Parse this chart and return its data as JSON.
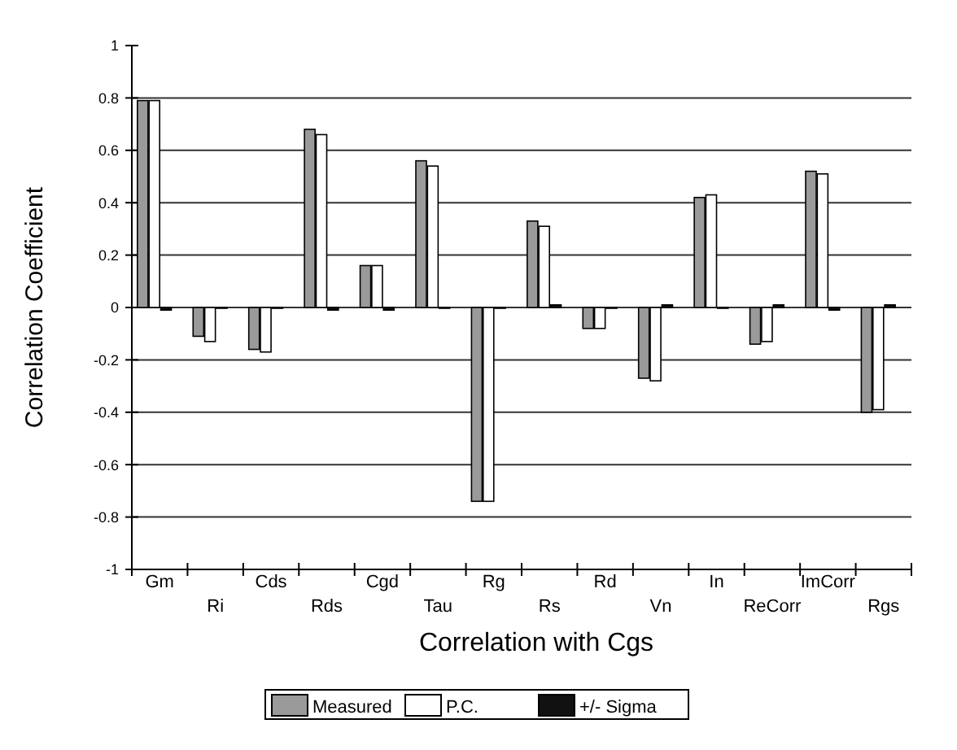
{
  "chart_data": {
    "type": "bar",
    "xlabel": "Correlation with Cgs",
    "ylabel": "Correlation Coefficient",
    "categories": [
      "Gm",
      "Ri",
      "Cds",
      "Rds",
      "Cgd",
      "Tau",
      "Rg",
      "Rs",
      "Rd",
      "Vn",
      "In",
      "ReCorr",
      "ImCorr",
      "Rgs"
    ],
    "series": [
      {
        "name": "Measured",
        "color": "#9a9a9a",
        "values": [
          0.79,
          -0.11,
          -0.16,
          0.68,
          0.16,
          0.56,
          -0.74,
          0.33,
          -0.08,
          -0.27,
          0.42,
          -0.14,
          0.52,
          -0.4
        ]
      },
      {
        "name": "P.C.",
        "color": "#ffffff",
        "values": [
          0.79,
          -0.13,
          -0.17,
          0.66,
          0.16,
          0.54,
          -0.74,
          0.31,
          -0.08,
          -0.28,
          0.43,
          -0.13,
          0.51,
          -0.39
        ]
      },
      {
        "name": "+/- Sigma",
        "color": "#111111",
        "values": [
          -0.01,
          0,
          0,
          -0.01,
          -0.01,
          0,
          0,
          0.01,
          0,
          0.01,
          0,
          0.01,
          -0.01,
          0.01
        ]
      }
    ],
    "ylim": [
      -1,
      1
    ],
    "yticks": [
      -1,
      -0.8,
      -0.6,
      -0.4,
      -0.2,
      0,
      0.2,
      0.4,
      0.6,
      0.8,
      1
    ],
    "grid": "y",
    "legend": "bottom"
  }
}
